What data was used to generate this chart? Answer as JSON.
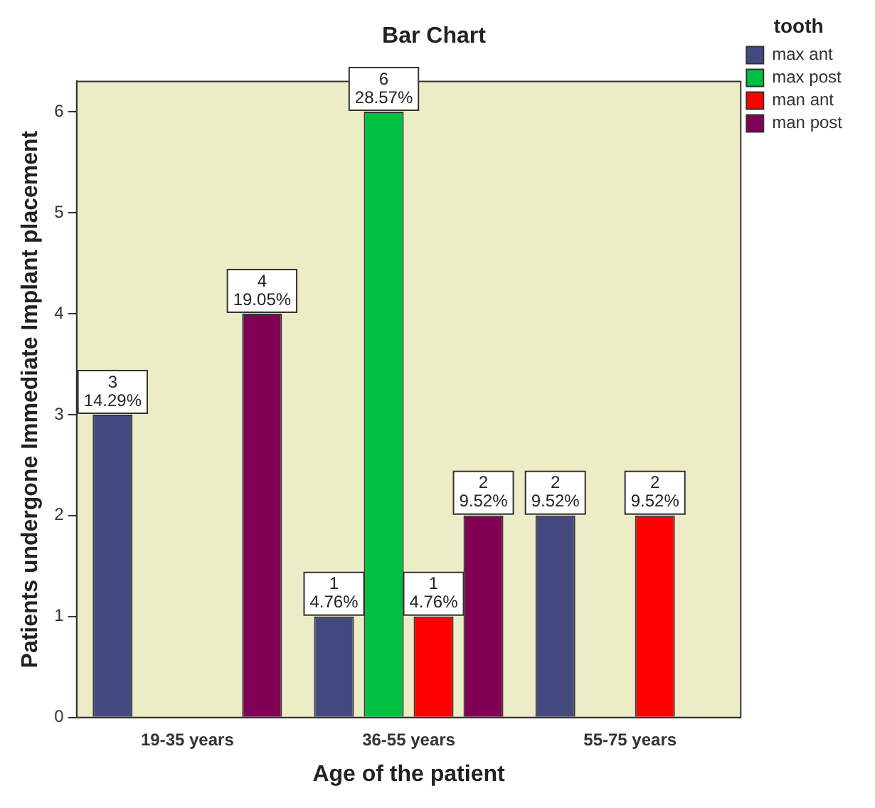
{
  "chart_data": {
    "type": "bar",
    "title": "Bar Chart",
    "xlabel": "Age of the patient",
    "ylabel": "Patients undergone Immediate Implant placement",
    "legend_title": "tooth",
    "legend": "right",
    "categories": [
      "19-35 years",
      "36-55 years",
      "55-75 years"
    ],
    "series": [
      {
        "name": "max ant",
        "color": "#444a80",
        "values": [
          3,
          1,
          2
        ],
        "value_labels": [
          "3\n14.29%",
          "1\n4.76%",
          "2\n9.52%"
        ]
      },
      {
        "name": "max post",
        "color": "#00c040",
        "values": [
          null,
          6,
          null
        ],
        "value_labels": [
          null,
          "6\n28.57%",
          null
        ]
      },
      {
        "name": "man ant",
        "color": "#ff0000",
        "values": [
          null,
          1,
          2
        ],
        "value_labels": [
          null,
          "1\n4.76%",
          "2\n9.52%"
        ]
      },
      {
        "name": "man post",
        "color": "#800055",
        "values": [
          4,
          2,
          null
        ],
        "value_labels": [
          "4\n19.05%",
          "2\n9.52%",
          null
        ]
      }
    ],
    "ylim": [
      0,
      6.3
    ],
    "yticks": [
      0,
      1,
      2,
      3,
      4,
      5,
      6
    ],
    "grid": false
  }
}
